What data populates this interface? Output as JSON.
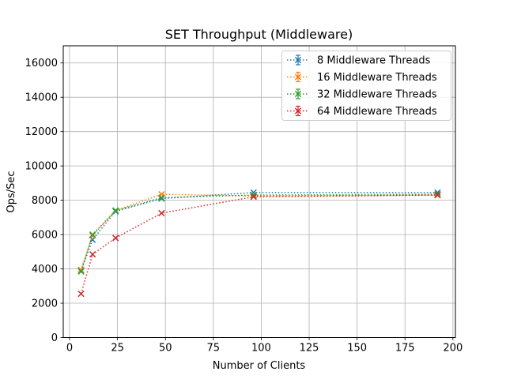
{
  "chart_data": {
    "type": "line",
    "title": "SET Throughput (Middleware)",
    "xlabel": "Number of Clients",
    "ylabel": "Ops/Sec",
    "xlim": [
      -3.3,
      201.3
    ],
    "ylim": [
      0,
      17000
    ],
    "xticks": [
      0,
      25,
      50,
      75,
      100,
      125,
      150,
      175,
      200
    ],
    "yticks": [
      0,
      2000,
      4000,
      6000,
      8000,
      10000,
      12000,
      14000,
      16000
    ],
    "grid": true,
    "legend_position": "top-right",
    "line_style": "dotted",
    "marker": "x",
    "x": [
      6,
      12,
      24,
      48,
      96,
      192
    ],
    "series": [
      {
        "name": "8 Middleware Threads",
        "color": "#1f77b4",
        "values": [
          3900,
          5700,
          7350,
          8100,
          8450,
          8450
        ]
      },
      {
        "name": "16 Middleware Threads",
        "color": "#ff7f0e",
        "values": [
          3950,
          5950,
          7400,
          8350,
          8250,
          8300
        ]
      },
      {
        "name": "32 Middleware Threads",
        "color": "#2ca02c",
        "values": [
          3850,
          6000,
          7400,
          8150,
          8300,
          8350
        ]
      },
      {
        "name": "64 Middleware Threads",
        "color": "#d62728",
        "values": [
          2550,
          4850,
          5800,
          7250,
          8200,
          8300
        ]
      }
    ]
  }
}
